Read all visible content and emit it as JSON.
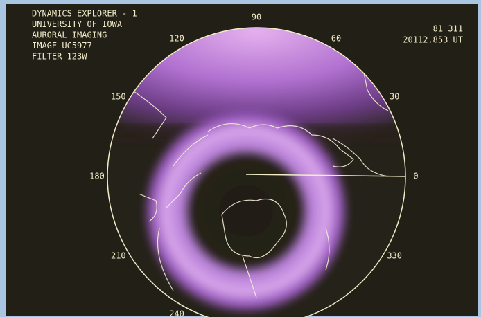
{
  "header": {
    "lines": [
      "DYNAMICS EXPLORER - 1",
      "UNIVERSITY OF IOWA",
      "AURORAL IMAGING",
      "IMAGE UC5977",
      "FILTER 123W"
    ]
  },
  "timestamp": {
    "lines": [
      "81  311",
      "20112.853 UT"
    ]
  },
  "longitude_labels": [
    90,
    60,
    30,
    0,
    330,
    240,
    210,
    180,
    150,
    120
  ]
}
